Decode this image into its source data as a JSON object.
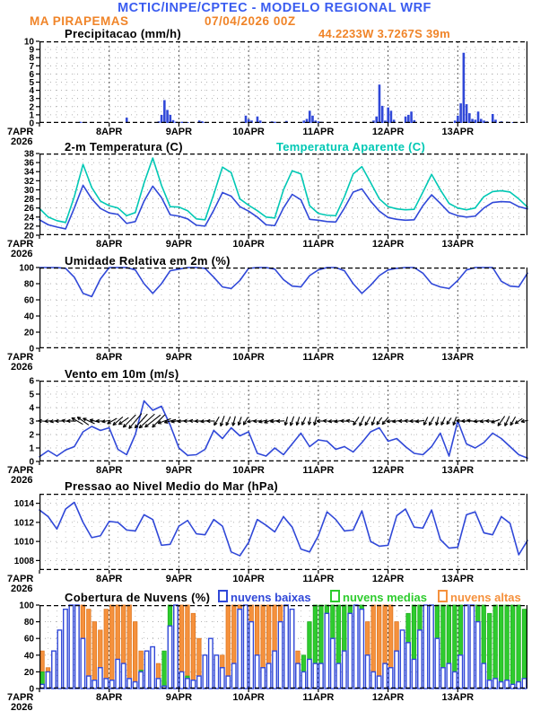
{
  "header": {
    "title": "MCTIC/INPE/CPTEC - MODELO REGIONAL WRF",
    "station": "MA PIRAPEMAS",
    "run_datetime": "07/04/2026 00Z"
  },
  "colors": {
    "header_blue": "#3a5cf0",
    "header_orange": "#f08428",
    "line_blue": "#3048d8",
    "cyan": "#00c8b4",
    "green": "#2ecc2e",
    "green_stroke": "#1fae1f",
    "orange": "#f5913d",
    "orange_stroke": "#e07820",
    "black": "#000000"
  },
  "x_axis": {
    "day_labels": [
      "7APR",
      "8APR",
      "9APR",
      "10APR",
      "11APR",
      "12APR",
      "13APR"
    ],
    "year_label": "2026",
    "total_hours": 168
  },
  "chart_data": [
    {
      "type": "bar",
      "title": "Precipitacao (mm/h)",
      "right_label": "44.2233W 3.7267S 39m",
      "ylabel": "mm/h",
      "ylim": [
        0,
        10
      ],
      "yticks": [
        0,
        1,
        2,
        3,
        4,
        5,
        6,
        7,
        8,
        9,
        10
      ],
      "step_h": 1,
      "values": [
        0,
        0,
        0,
        0,
        0,
        0,
        0,
        0,
        0,
        0,
        0,
        0,
        0,
        0.1,
        0.15,
        0.1,
        0.1,
        0,
        0.12,
        0,
        0,
        0,
        0,
        0,
        0,
        0,
        0,
        0,
        0,
        0,
        0.65,
        0,
        0,
        0,
        0,
        0,
        0,
        0,
        0,
        0,
        0,
        0.2,
        1.0,
        2.8,
        1.6,
        1.0,
        0.35,
        0.15,
        0,
        0.15,
        0,
        0.1,
        0,
        0,
        0,
        0.3,
        0.2,
        0.1,
        0,
        0,
        0,
        0,
        0,
        0,
        0,
        0,
        0,
        0,
        0,
        0,
        0.15,
        0.9,
        0.45,
        0.3,
        0,
        0.8,
        0.3,
        0,
        0,
        0,
        0.2,
        0.15,
        0,
        0,
        0,
        0.25,
        0,
        0,
        0,
        0,
        0,
        0.3,
        0.5,
        1.5,
        0.9,
        0.3,
        0.2,
        0.15,
        0,
        0,
        0,
        0,
        0,
        0,
        0,
        0,
        0,
        0,
        0,
        0.15,
        0,
        0,
        0,
        0,
        0,
        0.3,
        0.8,
        4.7,
        2.1,
        0.3,
        1.9,
        1.5,
        0.4,
        0,
        0,
        0,
        0.8,
        1.0,
        1.4,
        0.35,
        0,
        0,
        0,
        0,
        0,
        0,
        0,
        0,
        0,
        0,
        0,
        0,
        0,
        0.3,
        0.9,
        2.4,
        8.6,
        2.3,
        1.2,
        0.5,
        0.4,
        1.4,
        0.5,
        0.3,
        0.2,
        0,
        1.1,
        0.4,
        0,
        0.2,
        0,
        0.15,
        0,
        0.1,
        0,
        0,
        0,
        0,
        0,
        0,
        0
      ]
    },
    {
      "type": "line",
      "title": "2-m Temperatura (C)",
      "right_label": "Temperatura Aparente (C)",
      "ylim": [
        20,
        38
      ],
      "yticks": [
        20,
        22,
        24,
        26,
        28,
        30,
        32,
        34,
        36,
        38
      ],
      "step_h": 3,
      "series": [
        {
          "name": "2-m Temperatura (C)",
          "color_key": "line_blue",
          "values": [
            23.4,
            22.3,
            21.8,
            21.4,
            26.0,
            31.0,
            28.0,
            25.9,
            24.9,
            24.6,
            22.6,
            23.0,
            27.5,
            30.8,
            28.3,
            24.5,
            24.2,
            23.6,
            22.2,
            22.0,
            25.5,
            29.4,
            28.6,
            26.3,
            25.3,
            24.0,
            22.3,
            22.1,
            26.0,
            29.0,
            27.8,
            23.5,
            23.3,
            23.0,
            22.9,
            26.0,
            29.5,
            30.2,
            27.5,
            25.3,
            23.9,
            23.5,
            23.3,
            23.4,
            26.5,
            28.9,
            27.0,
            25.0,
            24.3,
            24.0,
            24.2,
            26.0,
            27.2,
            27.4,
            27.3,
            26.3,
            25.8
          ]
        },
        {
          "name": "Temperatura Aparente (C)",
          "color_key": "cyan",
          "values": [
            25.9,
            24.0,
            23.2,
            22.8,
            28.5,
            35.6,
            30.5,
            27.5,
            26.5,
            26.0,
            24.3,
            25.0,
            31.5,
            37.0,
            31.0,
            26.3,
            26.2,
            25.4,
            23.6,
            23.4,
            29.0,
            35.0,
            33.8,
            28.0,
            26.6,
            25.4,
            24.0,
            23.8,
            30.0,
            34.2,
            33.5,
            26.5,
            24.8,
            24.4,
            24.3,
            28.5,
            33.5,
            35.1,
            31.6,
            28.0,
            26.3,
            25.8,
            25.6,
            25.7,
            29.5,
            33.4,
            30.0,
            27.0,
            26.0,
            25.6,
            26.0,
            28.5,
            29.6,
            29.8,
            29.5,
            28.0,
            26.2
          ]
        }
      ]
    },
    {
      "type": "line",
      "title": "Umidade Relativa em 2m (%)",
      "right_label": "",
      "ylim": [
        0,
        100
      ],
      "yticks": [
        0,
        20,
        40,
        60,
        80,
        100
      ],
      "step_h": 3,
      "series": [
        {
          "name": "Umidade Relativa em 2m (%)",
          "color_key": "line_blue",
          "values": [
            100,
            100,
            100,
            99,
            88,
            68,
            64,
            86,
            100,
            100,
            100,
            97,
            80,
            68,
            80,
            96,
            98,
            100,
            100,
            99,
            88,
            76,
            74,
            84,
            99,
            100,
            100,
            98,
            85,
            77,
            76,
            90,
            97,
            100,
            100,
            96,
            80,
            68,
            78,
            90,
            97,
            99,
            100,
            100,
            93,
            80,
            76,
            74,
            84,
            97,
            100,
            100,
            100,
            83,
            77,
            76,
            93
          ]
        }
      ]
    },
    {
      "type": "wind",
      "title": "Vento em 10m (m/s)",
      "right_label": "",
      "ylim": [
        0,
        6
      ],
      "yticks": [
        0,
        1,
        2,
        3,
        4,
        5,
        6
      ],
      "step_h": 3,
      "series": [
        {
          "name": "Vento em 10m (m/s)",
          "color_key": "line_blue",
          "values": [
            0.35,
            0.8,
            0.4,
            0.85,
            1.1,
            2.2,
            2.6,
            2.3,
            2.5,
            0.9,
            0.5,
            2.0,
            4.5,
            3.8,
            4.1,
            2.7,
            1.0,
            0.45,
            0.5,
            0.9,
            2.3,
            1.7,
            2.5,
            1.9,
            2.2,
            0.6,
            0.4,
            1.0,
            0.5,
            1.3,
            2.1,
            1.1,
            1.6,
            1.5,
            0.9,
            1.1,
            0.7,
            1.4,
            2.2,
            2.5,
            1.5,
            1.7,
            1.1,
            0.6,
            0.5,
            1.1,
            2.1,
            0.4,
            3.0,
            1.3,
            1.0,
            1.4,
            2.1,
            1.7,
            1.1,
            0.5,
            0.25
          ]
        }
      ],
      "arrows": {
        "step_h": 2,
        "y_value": 3,
        "angles_deg": [
          175,
          185,
          190,
          180,
          170,
          178,
          150,
          145,
          155,
          165,
          180,
          190,
          210,
          220,
          215,
          225,
          230,
          228,
          222,
          218,
          225,
          200,
          195,
          190,
          185,
          180,
          175,
          182,
          188,
          180,
          240,
          250,
          245,
          255,
          250,
          240,
          190,
          185,
          195,
          200,
          188,
          182,
          255,
          250,
          252,
          246,
          260,
          255,
          180,
          175,
          185,
          190,
          178,
          172,
          235,
          245,
          240,
          250,
          235,
          230,
          185,
          190,
          180,
          175,
          182,
          188,
          245,
          240,
          255,
          245,
          235,
          250,
          175,
          180,
          172,
          185,
          190,
          178,
          200,
          235,
          245,
          240,
          215,
          190
        ],
        "lengths": [
          0.8,
          0.7,
          0.8,
          0.9,
          0.8,
          0.9,
          1.3,
          1.4,
          1.3,
          1.0,
          0.9,
          0.9,
          1.1,
          1.3,
          1.2,
          1.8,
          2.0,
          1.9,
          2.1,
          2.0,
          1.8,
          1.4,
          1.2,
          1.0,
          0.9,
          0.8,
          0.8,
          0.9,
          0.9,
          0.8,
          1.0,
          1.1,
          1.0,
          1.0,
          0.9,
          0.9,
          0.9,
          0.8,
          0.9,
          1.0,
          0.9,
          0.8,
          0.9,
          1.0,
          0.9,
          0.9,
          0.8,
          0.9,
          0.9,
          0.8,
          0.9,
          0.9,
          0.8,
          0.8,
          1.0,
          1.1,
          1.0,
          0.9,
          0.9,
          0.9,
          0.9,
          0.9,
          0.8,
          0.8,
          0.9,
          0.9,
          0.9,
          1.0,
          0.9,
          0.9,
          0.8,
          0.9,
          0.9,
          1.0,
          1.1,
          0.9,
          0.8,
          0.8,
          0.9,
          1.2,
          1.1,
          1.0,
          0.9,
          0.7
        ]
      }
    },
    {
      "type": "line",
      "title": "Pressao ao Nivel Medio do Mar (hPa)",
      "right_label": "",
      "ylim": [
        1007,
        1015
      ],
      "yticks": [
        1008,
        1010,
        1012,
        1014
      ],
      "step_h": 3,
      "series": [
        {
          "name": "Pressao ao Nivel Medio do Mar (hPa)",
          "color_key": "line_blue",
          "values": [
            1013.3,
            1012.6,
            1011.3,
            1013.4,
            1014.1,
            1012.0,
            1010.4,
            1010.6,
            1012.1,
            1012.0,
            1011.2,
            1011.1,
            1012.8,
            1012.3,
            1009.6,
            1009.7,
            1011.6,
            1012.2,
            1010.8,
            1010.7,
            1012.3,
            1011.6,
            1008.9,
            1008.5,
            1009.9,
            1012.3,
            1011.7,
            1011.0,
            1012.6,
            1011.5,
            1009.2,
            1008.9,
            1010.6,
            1013.1,
            1012.3,
            1011.1,
            1011.2,
            1013.2,
            1010.0,
            1009.5,
            1009.6,
            1012.7,
            1013.4,
            1011.5,
            1011.4,
            1013.3,
            1010.2,
            1009.3,
            1009.4,
            1012.8,
            1013.1,
            1010.9,
            1010.7,
            1012.6,
            1011.9,
            1008.6,
            1010.1
          ]
        }
      ]
    },
    {
      "type": "cloud",
      "title": "Cobertura de Nuvens (%)",
      "right_label": "",
      "ylim": [
        0,
        100
      ],
      "yticks": [
        0,
        20,
        40,
        60,
        80,
        100
      ],
      "step_h": 2,
      "series": [
        {
          "name": "nuvens baixas",
          "color_key": "line_blue",
          "values": [
            5,
            20,
            45,
            70,
            95,
            100,
            100,
            60,
            15,
            10,
            25,
            12,
            10,
            35,
            30,
            12,
            8,
            20,
            45,
            50,
            12,
            3,
            75,
            100,
            20,
            12,
            10,
            15,
            40,
            60,
            40,
            25,
            15,
            30,
            95,
            100,
            80,
            40,
            25,
            30,
            45,
            80,
            100,
            95,
            30,
            20,
            35,
            30,
            30,
            90,
            60,
            30,
            45,
            90,
            100,
            95,
            40,
            20,
            15,
            30,
            25,
            45,
            70,
            55,
            35,
            70,
            100,
            100,
            60,
            25,
            30,
            20,
            40,
            100,
            100,
            80,
            30,
            10,
            12,
            8,
            10,
            5,
            8,
            12
          ]
        },
        {
          "name": "nuvens medias",
          "color_key": "green",
          "values": [
            20,
            8,
            3,
            2,
            0,
            2,
            3,
            5,
            5,
            8,
            5,
            3,
            3,
            2,
            5,
            8,
            8,
            22,
            10,
            5,
            5,
            45,
            100,
            100,
            20,
            15,
            10,
            8,
            5,
            10,
            8,
            5,
            5,
            8,
            10,
            15,
            10,
            5,
            5,
            8,
            10,
            15,
            20,
            10,
            15,
            40,
            80,
            100,
            100,
            100,
            100,
            100,
            100,
            100,
            100,
            100,
            40,
            20,
            10,
            20,
            20,
            40,
            70,
            90,
            100,
            100,
            100,
            100,
            100,
            100,
            100,
            100,
            100,
            100,
            100,
            100,
            100,
            90,
            100,
            100,
            100,
            100,
            100,
            95
          ]
        },
        {
          "name": "nuvens altas",
          "color_key": "orange",
          "values": [
            45,
            25,
            10,
            30,
            60,
            85,
            100,
            100,
            95,
            80,
            70,
            95,
            100,
            100,
            100,
            100,
            80,
            45,
            30,
            40,
            30,
            8,
            15,
            95,
            100,
            100,
            90,
            60,
            30,
            15,
            20,
            40,
            100,
            100,
            100,
            100,
            100,
            100,
            100,
            100,
            100,
            100,
            95,
            80,
            45,
            20,
            5,
            0,
            0,
            5,
            20,
            40,
            60,
            40,
            20,
            30,
            80,
            100,
            100,
            100,
            100,
            80,
            40,
            10,
            5,
            0,
            0,
            5,
            10,
            5,
            0,
            0,
            5,
            0,
            0,
            0,
            0,
            0,
            0,
            0,
            0,
            0,
            0,
            0
          ]
        }
      ]
    }
  ]
}
